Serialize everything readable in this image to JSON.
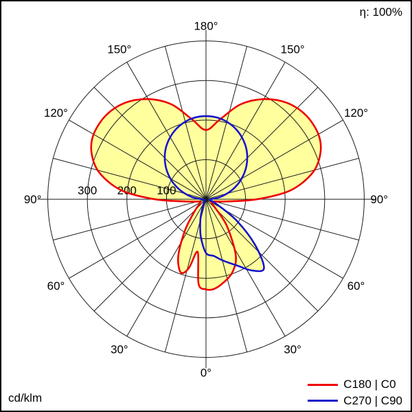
{
  "page": {
    "background": "#ffffff",
    "border_color": "#000000"
  },
  "chart_data": {
    "type": "polar",
    "subtype": "photometric-intensity-distribution",
    "unit": "cd/klm",
    "efficiency_label": "η: 100%",
    "angle_convention": "0° = nadir (bottom), 180° = zenith (top); negative angles = left half (C180 / C270 planes), positive angles = right half (C0 / C90 planes)",
    "angle_grid_step_deg": 15,
    "angle_labels": [
      {
        "deg": 0,
        "label": "0°"
      },
      {
        "deg": 30,
        "label": "30°"
      },
      {
        "deg": 60,
        "label": "60°"
      },
      {
        "deg": 90,
        "label": "90°"
      },
      {
        "deg": 120,
        "label": "120°"
      },
      {
        "deg": 150,
        "label": "150°"
      },
      {
        "deg": 180,
        "label": "180°"
      }
    ],
    "radial_axis": {
      "ticks": [
        100,
        200,
        300
      ],
      "tick_labels": [
        "100",
        "200",
        "300"
      ],
      "max": 400,
      "unit": "cd/klm"
    },
    "grid_color": "#1a1a1a",
    "fill_color": "#ffff9e",
    "series": [
      {
        "name": "C180 | C0",
        "color": "#ee0000",
        "points": [
          [
            180,
            175
          ],
          [
            170,
            205
          ],
          [
            160,
            255
          ],
          [
            150,
            292
          ],
          [
            140,
            318
          ],
          [
            130,
            330
          ],
          [
            120,
            328
          ],
          [
            112,
            312
          ],
          [
            104,
            278
          ],
          [
            96,
            215
          ],
          [
            90,
            130
          ],
          [
            84,
            55
          ],
          [
            78,
            28
          ],
          [
            68,
            16
          ],
          [
            58,
            16
          ],
          [
            48,
            28
          ],
          [
            38,
            85
          ],
          [
            28,
            160
          ],
          [
            20,
            196
          ],
          [
            12,
            215
          ],
          [
            5,
            228
          ],
          [
            0,
            228
          ],
          [
            -5,
            215
          ],
          [
            -9,
            135
          ],
          [
            -14,
            180
          ],
          [
            -19,
            196
          ],
          [
            -26,
            160
          ],
          [
            -34,
            95
          ],
          [
            -44,
            40
          ],
          [
            -56,
            18
          ],
          [
            -66,
            16
          ],
          [
            -76,
            25
          ],
          [
            -84,
            55
          ],
          [
            -90,
            130
          ],
          [
            -96,
            215
          ],
          [
            -104,
            278
          ],
          [
            -112,
            312
          ],
          [
            -120,
            328
          ],
          [
            -130,
            330
          ],
          [
            -140,
            318
          ],
          [
            -150,
            292
          ],
          [
            -160,
            255
          ],
          [
            -170,
            205
          ]
        ]
      },
      {
        "name": "C270 | C90",
        "color": "#1414cc",
        "points": [
          [
            180,
            210
          ],
          [
            170,
            207
          ],
          [
            160,
            197
          ],
          [
            150,
            181
          ],
          [
            140,
            160
          ],
          [
            130,
            134
          ],
          [
            120,
            104
          ],
          [
            110,
            72
          ],
          [
            100,
            40
          ],
          [
            92,
            15
          ],
          [
            85,
            10
          ],
          [
            75,
            12
          ],
          [
            65,
            30
          ],
          [
            55,
            95
          ],
          [
            47,
            170
          ],
          [
            40,
            228
          ],
          [
            33,
            215
          ],
          [
            25,
            185
          ],
          [
            15,
            160
          ],
          [
            8,
            145
          ],
          [
            0,
            136
          ],
          [
            -8,
            95
          ],
          [
            -15,
            55
          ],
          [
            -22,
            25
          ],
          [
            -32,
            8
          ],
          [
            -50,
            4
          ],
          [
            -70,
            4
          ],
          [
            -85,
            8
          ],
          [
            -92,
            15
          ],
          [
            -100,
            40
          ],
          [
            -110,
            72
          ],
          [
            -120,
            104
          ],
          [
            -130,
            134
          ],
          [
            -140,
            160
          ],
          [
            -150,
            181
          ],
          [
            -160,
            197
          ],
          [
            -170,
            207
          ]
        ]
      }
    ],
    "legend": {
      "position": "bottom-right",
      "entries": [
        {
          "label": "C180 | C0",
          "color": "#ee0000"
        },
        {
          "label": "C270 | C90",
          "color": "#1414cc"
        }
      ]
    }
  }
}
